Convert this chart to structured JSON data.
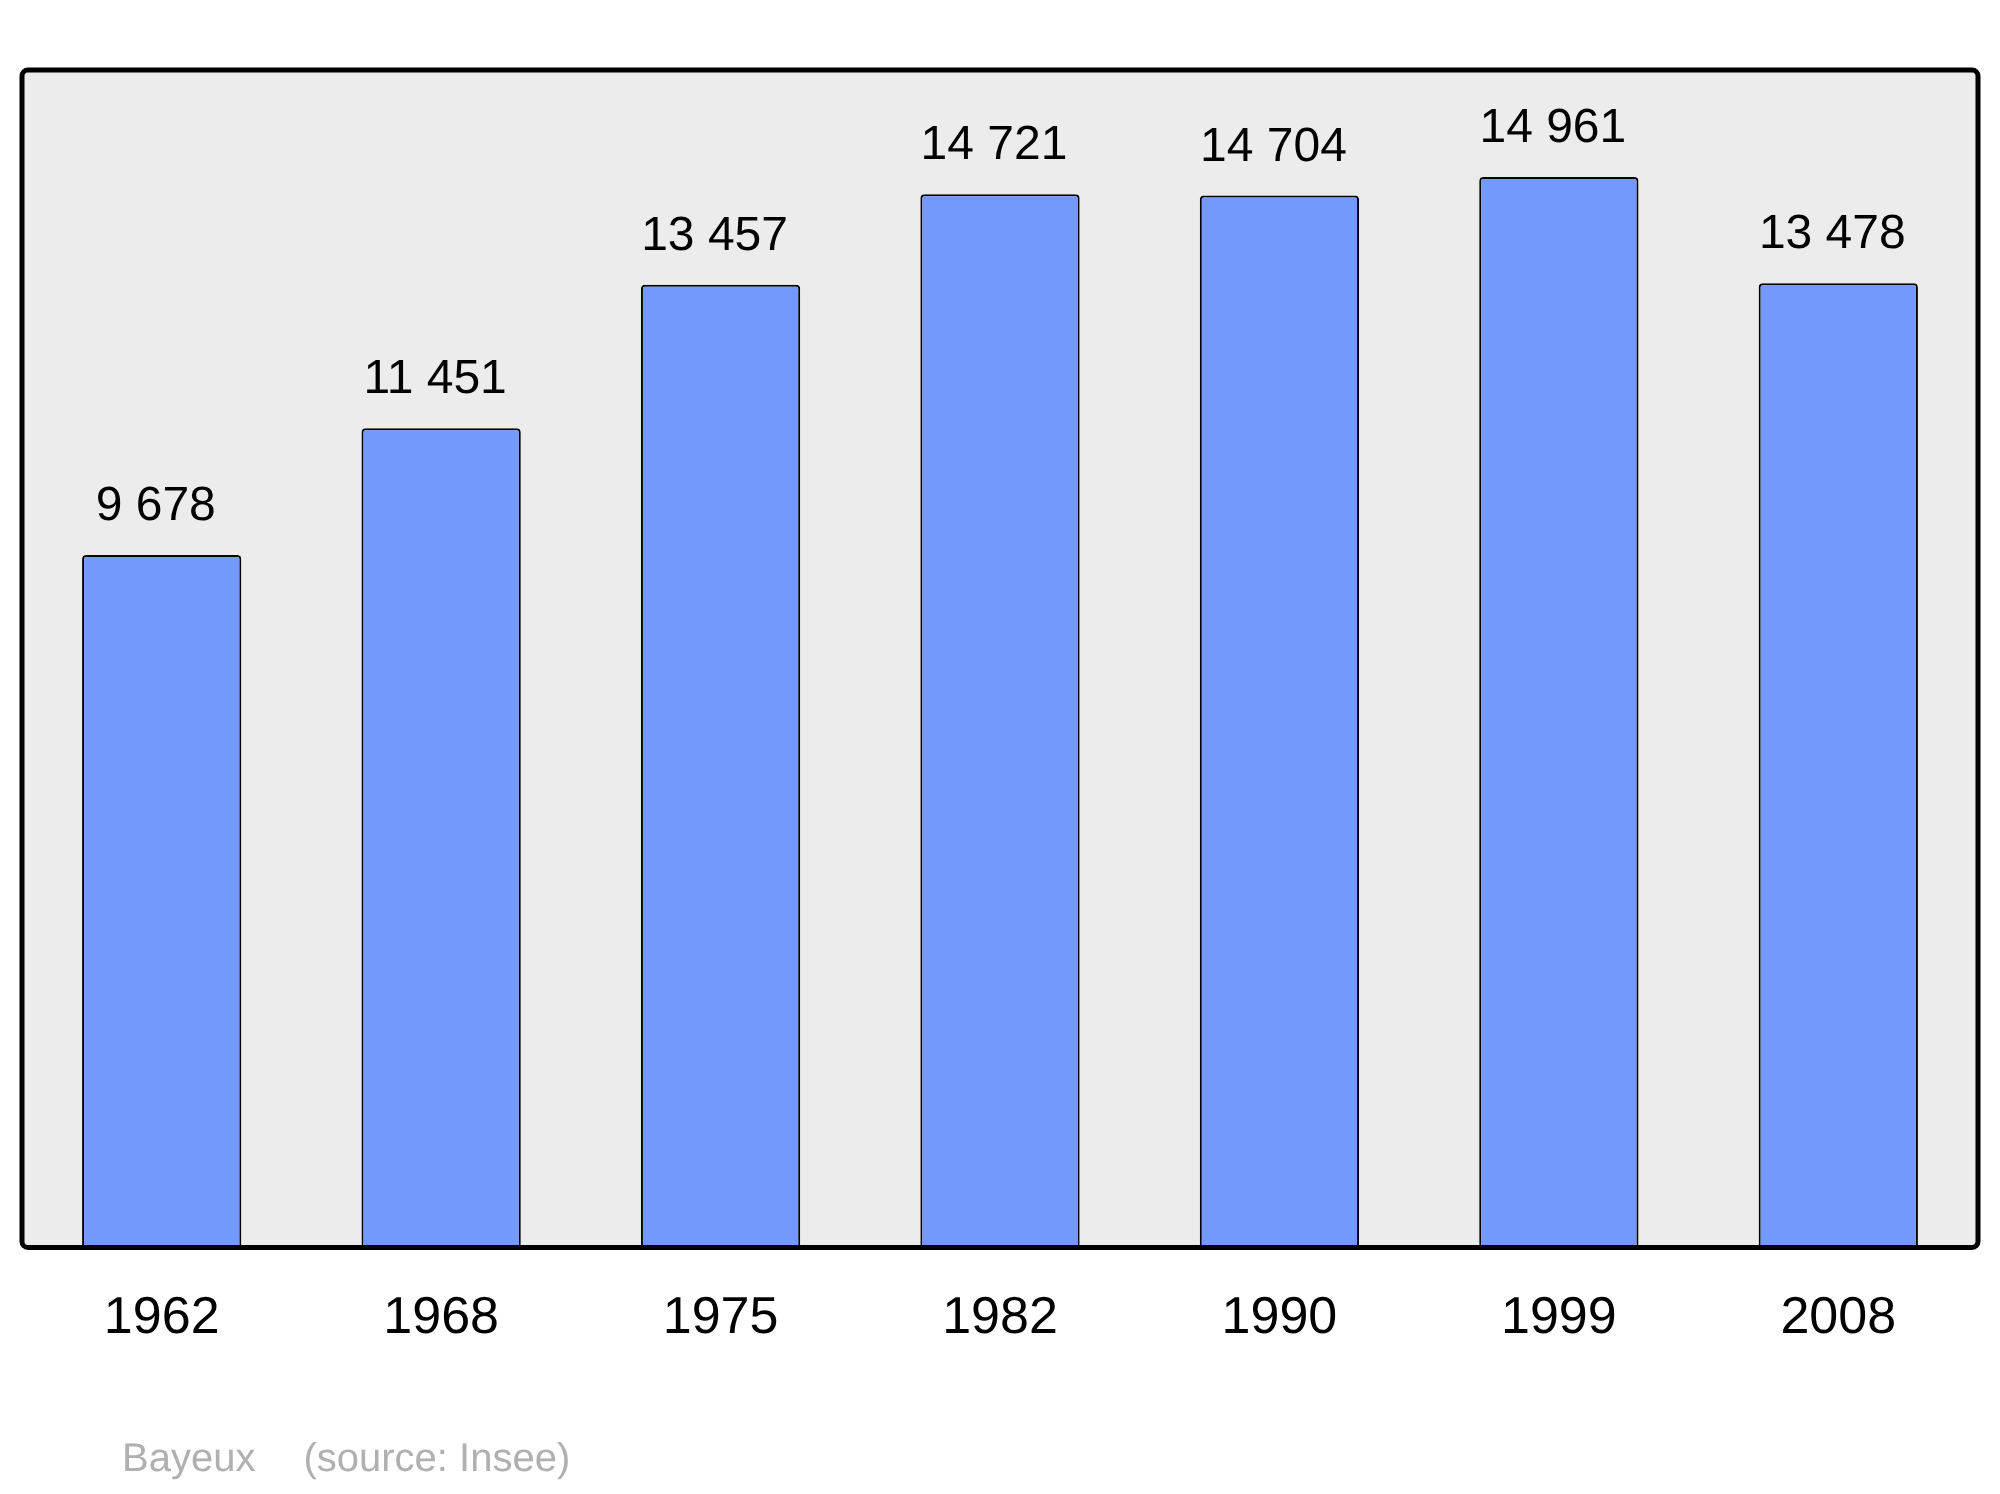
{
  "chart_data": {
    "type": "bar",
    "categories": [
      "1962",
      "1968",
      "1975",
      "1982",
      "1990",
      "1999",
      "2008"
    ],
    "values": [
      9678,
      11451,
      13457,
      14721,
      14704,
      14961,
      13478
    ],
    "color": "#7399ff",
    "data_labels": true,
    "grid": false,
    "legend": false,
    "annotations": [
      "Bayeux",
      "(source: Insee)"
    ]
  }
}
